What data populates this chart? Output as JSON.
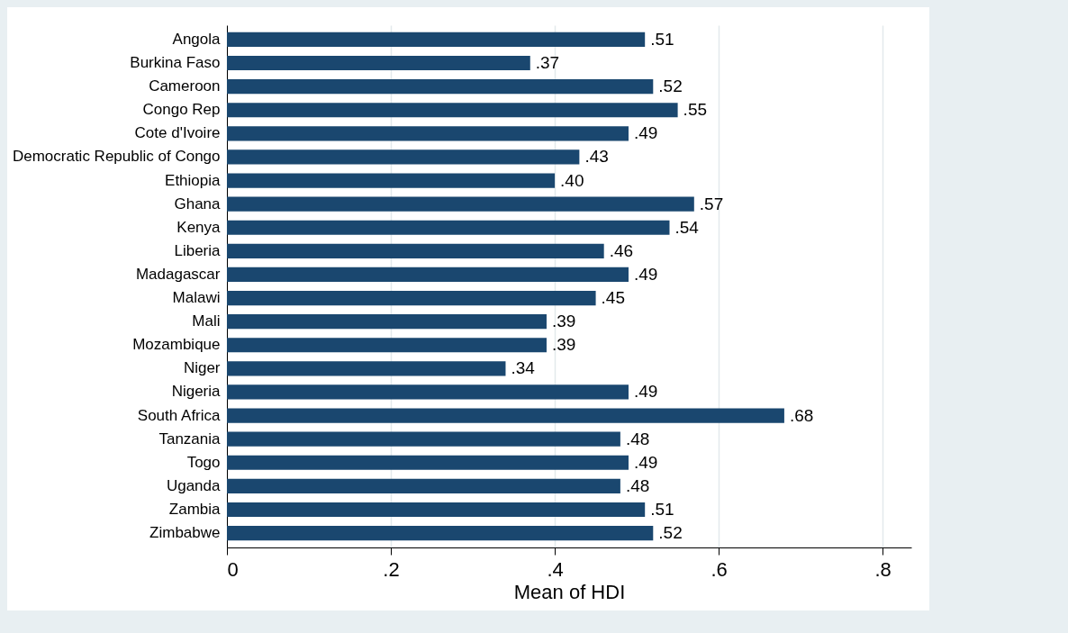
{
  "chart_data": {
    "type": "bar",
    "orientation": "horizontal",
    "xlabel": "Mean of HDI",
    "categories": [
      "Angola",
      "Burkina Faso",
      "Cameroon",
      "Congo Rep",
      "Cote d'Ivoire",
      "Democratic Republic of Congo",
      "Ethiopia",
      "Ghana",
      "Kenya",
      "Liberia",
      "Madagascar",
      "Malawi",
      "Mali",
      "Mozambique",
      "Niger",
      "Nigeria",
      "South Africa",
      "Tanzania",
      "Togo",
      "Uganda",
      "Zambia",
      "Zimbabwe"
    ],
    "values": [
      0.51,
      0.37,
      0.52,
      0.55,
      0.49,
      0.43,
      0.4,
      0.57,
      0.54,
      0.46,
      0.49,
      0.45,
      0.39,
      0.39,
      0.34,
      0.49,
      0.68,
      0.48,
      0.49,
      0.48,
      0.51,
      0.52
    ],
    "value_labels": [
      ".51",
      ".37",
      ".52",
      ".55",
      ".49",
      ".43",
      ".40",
      ".57",
      ".54",
      ".46",
      ".49",
      ".45",
      ".39",
      ".39",
      ".34",
      ".49",
      ".68",
      ".48",
      ".49",
      ".48",
      ".51",
      ".52"
    ],
    "color": "#1a476f",
    "xlim": [
      0,
      0.835
    ],
    "xticks": [
      {
        "value": 0,
        "label": "0"
      },
      {
        "value": 0.2,
        "label": ".2"
      },
      {
        "value": 0.4,
        "label": ".4"
      },
      {
        "value": 0.6,
        "label": ".6"
      },
      {
        "value": 0.8,
        "label": ".8"
      }
    ],
    "grid": "x"
  }
}
